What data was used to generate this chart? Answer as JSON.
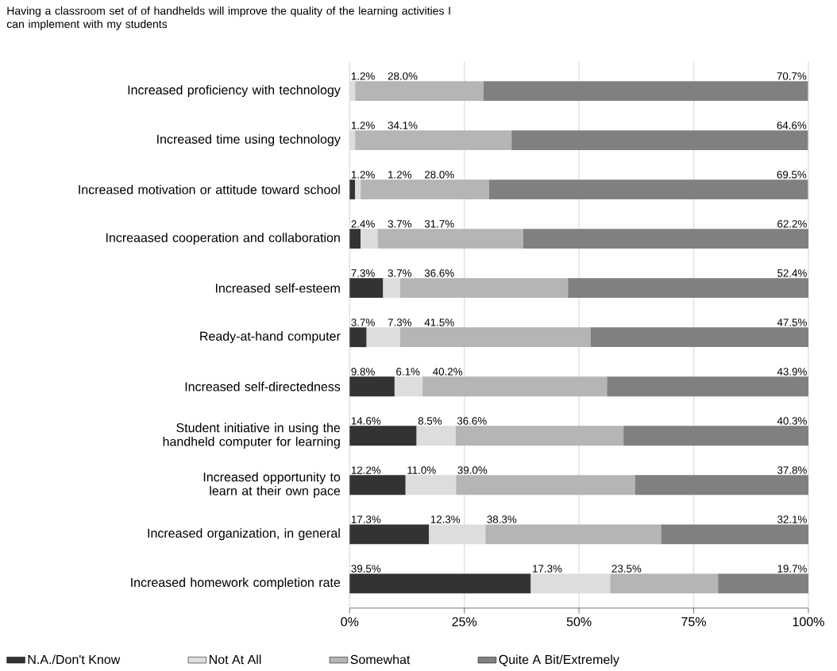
{
  "chart_data": {
    "type": "bar",
    "orientation": "horizontal",
    "stacked": true,
    "title": "Having a classroom set of of handhelds will improve the quality of the learning activities I can implement with my students",
    "categories": [
      "Increased proficiency with technology",
      "Increased time using technology",
      "Increased motivation or attitude toward school",
      "Increaased cooperation and collaboration",
      "Increased self-esteem",
      "Ready-at-hand computer",
      "Increased self-directedness",
      "Student initiative in using the handheld computer for learning",
      "Increased opportunity to learn at their own pace",
      "Increased organization, in general",
      "Increased homework completion rate"
    ],
    "series": [
      {
        "name": "N.A./Don't Know",
        "color": "#333333",
        "values": [
          null,
          null,
          1.2,
          2.4,
          7.3,
          3.7,
          9.8,
          14.6,
          12.2,
          17.3,
          39.5
        ],
        "value_labels": [
          null,
          null,
          "1.2%",
          "2.4%",
          "7.3%",
          "3.7%",
          "9.8%",
          "14.6%",
          "12.2%",
          "17.3%",
          "39.5%"
        ]
      },
      {
        "name": "Not At All",
        "color": "#dddddd",
        "values": [
          1.2,
          1.2,
          1.2,
          3.7,
          3.7,
          7.3,
          6.1,
          8.5,
          11.0,
          12.3,
          17.3
        ],
        "value_labels": [
          "1.2%",
          "1.2%",
          "1.2%",
          "3.7%",
          "3.7%",
          "7.3%",
          "6.1%",
          "8.5%",
          "11.0%",
          "12.3%",
          "17.3%"
        ]
      },
      {
        "name": "Somewhat",
        "color": "#b5b5b5",
        "values": [
          28.0,
          34.1,
          28.0,
          31.7,
          36.6,
          41.5,
          40.2,
          36.6,
          39.0,
          38.3,
          23.5
        ],
        "value_labels": [
          "28.0%",
          "34.1%",
          "28.0%",
          "31.7%",
          "36.6%",
          "41.5%",
          "40.2%",
          "36.6%",
          "39.0%",
          "38.3%",
          "23.5%"
        ]
      },
      {
        "name": "Quite A Bit/Extremely",
        "color": "#808080",
        "values": [
          70.7,
          64.6,
          69.5,
          62.2,
          52.4,
          47.5,
          43.9,
          40.3,
          37.8,
          32.1,
          19.7
        ],
        "value_labels": [
          "70.7%",
          "64.6%",
          "69.5%",
          "62.2%",
          "52.4%",
          "47.5%",
          "43.9%",
          "40.3%",
          "37.8%",
          "32.1%",
          "19.7%"
        ]
      }
    ],
    "xlim": [
      0,
      100
    ],
    "xticks": [
      {
        "value": 0,
        "label": "0%"
      },
      {
        "value": 25,
        "label": "25%"
      },
      {
        "value": 50,
        "label": "50%"
      },
      {
        "value": 75,
        "label": "75%"
      },
      {
        "value": 100,
        "label": "100%"
      }
    ],
    "grid": "x",
    "legend": "bottom"
  }
}
